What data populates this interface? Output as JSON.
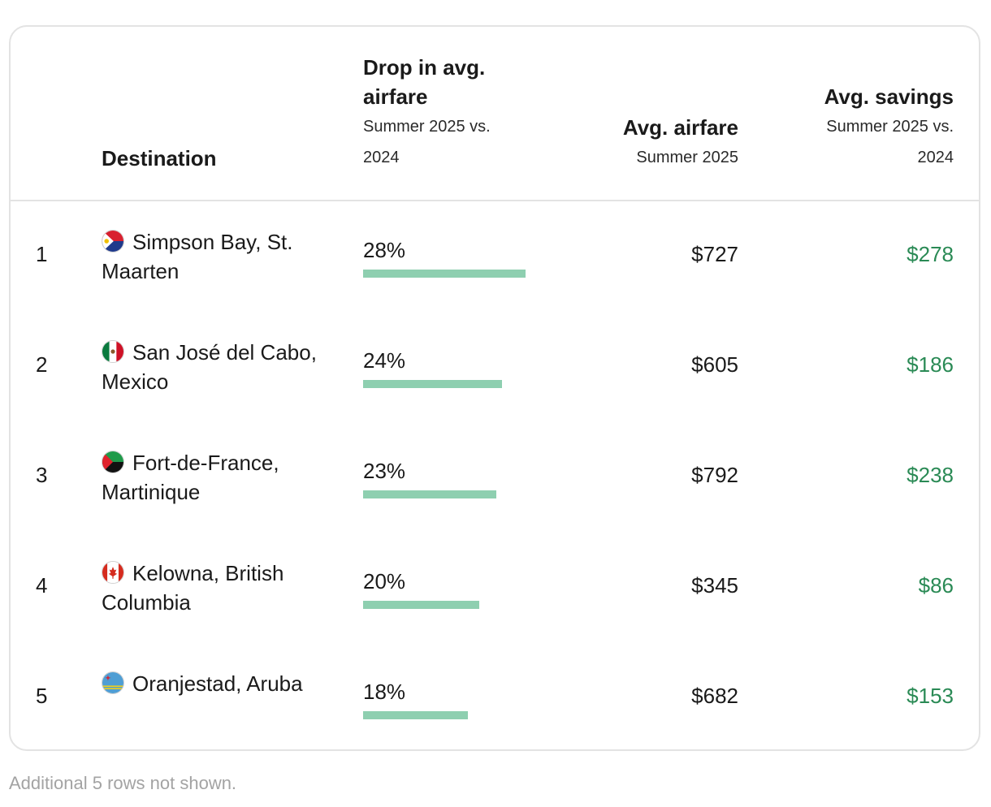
{
  "table": {
    "headers": {
      "destination": "Destination",
      "drop_title": "Drop in avg. airfare",
      "drop_sub": "Summer 2025 vs. 2024",
      "fare_title": "Avg. airfare",
      "fare_sub": "Summer 2025",
      "save_title": "Avg. savings",
      "save_sub": "Summer 2025 vs. 2024"
    },
    "max_drop_pct": 28,
    "rows": [
      {
        "rank": "1",
        "flag_icon": "sint-maarten-flag-icon",
        "destination": "Simpson Bay, St. Maarten",
        "drop_label": "28%",
        "drop_value": 28,
        "avg_airfare": "$727",
        "avg_savings": "$278"
      },
      {
        "rank": "2",
        "flag_icon": "mexico-flag-icon",
        "destination": "San José del Cabo, Mexico",
        "drop_label": "24%",
        "drop_value": 24,
        "avg_airfare": "$605",
        "avg_savings": "$186"
      },
      {
        "rank": "3",
        "flag_icon": "martinique-flag-icon",
        "destination": "Fort-de-France, Martinique",
        "drop_label": "23%",
        "drop_value": 23,
        "avg_airfare": "$792",
        "avg_savings": "$238"
      },
      {
        "rank": "4",
        "flag_icon": "canada-flag-icon",
        "destination": "Kelowna, British Columbia",
        "drop_label": "20%",
        "drop_value": 20,
        "avg_airfare": "$345",
        "avg_savings": "$86"
      },
      {
        "rank": "5",
        "flag_icon": "aruba-flag-icon",
        "destination": "Oranjestad, Aruba",
        "drop_label": "18%",
        "drop_value": 18,
        "avg_airfare": "$682",
        "avg_savings": "$153"
      }
    ]
  },
  "colors": {
    "bar": "#8ecfb0",
    "savings_text": "#2a8a55",
    "border": "#e3e3e3",
    "footnote": "#a3a3a3"
  },
  "footnote": "Additional 5 rows not shown."
}
